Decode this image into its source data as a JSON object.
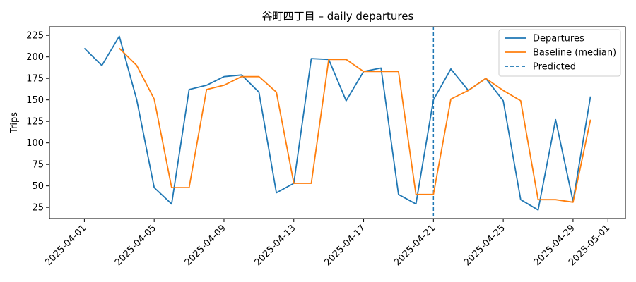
{
  "chart_data": {
    "type": "line",
    "title": "谷町四丁目 – daily departures",
    "xlabel": "",
    "ylabel": "Trips",
    "ylim": [
      12,
      235
    ],
    "xlim": [
      "2025-03-30",
      "2025-05-02"
    ],
    "yticks": [
      25,
      50,
      75,
      100,
      125,
      150,
      175,
      200,
      225
    ],
    "xticks": [
      "2025-04-01",
      "2025-04-05",
      "2025-04-09",
      "2025-04-13",
      "2025-04-17",
      "2025-04-21",
      "2025-04-25",
      "2025-04-29",
      "2025-05-01"
    ],
    "grid": false,
    "legend_position": "top-right",
    "predicted_date": "2025-04-21",
    "series": [
      {
        "name": "Departures",
        "color": "#1f77b4",
        "style": "solid",
        "x": [
          "2025-04-01",
          "2025-04-02",
          "2025-04-03",
          "2025-04-04",
          "2025-04-05",
          "2025-04-06",
          "2025-04-07",
          "2025-04-08",
          "2025-04-09",
          "2025-04-10",
          "2025-04-11",
          "2025-04-12",
          "2025-04-13",
          "2025-04-14",
          "2025-04-15",
          "2025-04-16",
          "2025-04-17",
          "2025-04-18",
          "2025-04-19",
          "2025-04-20",
          "2025-04-21",
          "2025-04-22",
          "2025-04-23",
          "2025-04-24",
          "2025-04-25",
          "2025-04-26",
          "2025-04-27",
          "2025-04-28",
          "2025-04-29",
          "2025-04-30"
        ],
        "values": [
          210,
          190,
          224,
          150,
          48,
          29,
          162,
          167,
          177,
          179,
          159,
          42,
          53,
          198,
          197,
          149,
          183,
          187,
          40,
          29,
          150,
          186,
          161,
          175,
          149,
          34,
          22,
          127,
          32,
          154
        ]
      },
      {
        "name": "Baseline (median)",
        "color": "#ff7f0e",
        "style": "solid",
        "x": [
          "2025-04-03",
          "2025-04-04",
          "2025-04-05",
          "2025-04-06",
          "2025-04-07",
          "2025-04-08",
          "2025-04-09",
          "2025-04-10",
          "2025-04-11",
          "2025-04-12",
          "2025-04-13",
          "2025-04-14",
          "2025-04-15",
          "2025-04-16",
          "2025-04-17",
          "2025-04-18",
          "2025-04-19",
          "2025-04-20",
          "2025-04-21",
          "2025-04-22",
          "2025-04-23",
          "2025-04-24",
          "2025-04-25",
          "2025-04-26",
          "2025-04-27",
          "2025-04-28",
          "2025-04-29",
          "2025-04-30"
        ],
        "values": [
          210,
          190,
          151,
          48,
          48,
          162,
          167,
          177,
          177,
          159,
          53,
          53,
          197,
          197,
          183,
          183,
          183,
          40,
          40,
          151,
          161,
          175,
          161,
          149,
          34,
          34,
          31,
          127
        ]
      },
      {
        "name": "Predicted",
        "color": "#1f77b4",
        "style": "dashed"
      }
    ]
  }
}
